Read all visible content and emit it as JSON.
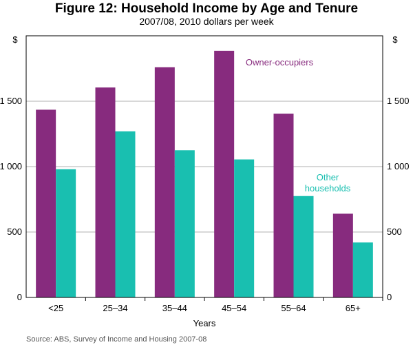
{
  "title": "Figure 12: Household Income by Age and Tenure",
  "subtitle": "2007/08, 2010 dollars per week",
  "source": "Source:  ABS, Survey of Income and Housing 2007-08",
  "chart_data": {
    "type": "bar",
    "title": "Figure 12: Household Income by Age and Tenure",
    "subtitle": "2007/08, 2010 dollars per week",
    "xlabel": "Years",
    "ylabel_left": "$",
    "ylabel_right": "$",
    "ylim": [
      0,
      2000
    ],
    "yticks": [
      0,
      500,
      1000,
      1500
    ],
    "ytick_labels": [
      "0",
      "500",
      "1 000",
      "1 500"
    ],
    "grid": true,
    "categories": [
      "<25",
      "25–34",
      "35–44",
      "45–54",
      "55–64",
      "65+"
    ],
    "series": [
      {
        "name": "Owner-occupiers",
        "color": "#872b7e",
        "values": [
          1435,
          1605,
          1760,
          1885,
          1405,
          640
        ]
      },
      {
        "name": "Other households",
        "color": "#19bfb0",
        "values": [
          980,
          1270,
          1125,
          1055,
          775,
          420
        ]
      }
    ],
    "annotations": [
      {
        "lines": [
          "Owner-occupiers"
        ],
        "series": 0,
        "color": "#872b7e"
      },
      {
        "lines": [
          "Other",
          "households"
        ],
        "series": 1,
        "color": "#19bfb0"
      }
    ]
  }
}
